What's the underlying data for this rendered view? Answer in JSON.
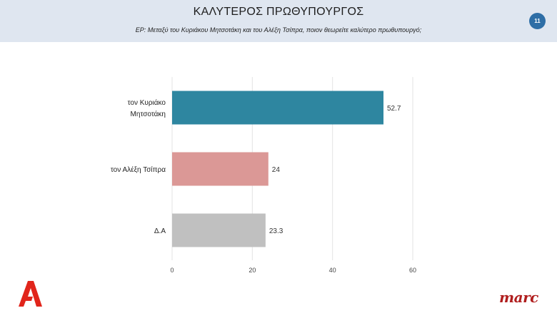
{
  "header": {
    "title": "ΚΑΛΥΤΕΡΟΣ ΠΡΩΘΥΠΟΥΡΓΟΣ",
    "question": "ΕΡ:  Μεταξύ του Κυριάκου Μητσοτάκη και του Αλέξη Τσίπρα, ποιον θεωρείτε καλύτερο πρωθυπουργό;",
    "page_number": "11"
  },
  "chart_data": {
    "type": "bar",
    "orientation": "horizontal",
    "categories": [
      [
        "τον Κυριάκο",
        "Μητσοτάκη"
      ],
      [
        "τον Αλέξη Τσίπρα"
      ],
      [
        "Δ.Α"
      ]
    ],
    "values": [
      52.7,
      24,
      23.3
    ],
    "value_labels": [
      "52.7",
      "24",
      "23.3"
    ],
    "colors": [
      "#2e86a0",
      "#db9896",
      "#c0c0c0"
    ],
    "xlim": [
      0,
      60
    ],
    "xticks": [
      0,
      20,
      40,
      60
    ],
    "grid": true
  },
  "logos": {
    "broadcaster": "alpha-logo",
    "pollster": "marc"
  }
}
